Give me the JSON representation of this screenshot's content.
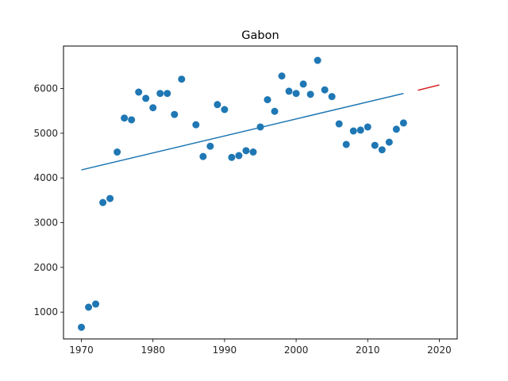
{
  "chart_data": {
    "type": "scatter",
    "title": "Gabon",
    "xlabel": "",
    "ylabel": "",
    "xlim": [
      1967.5,
      2022.5
    ],
    "ylim": [
      400,
      6950
    ],
    "grid": false,
    "x_ticks": [
      1970,
      1980,
      1990,
      2000,
      2010,
      2020
    ],
    "y_ticks": [
      1000,
      2000,
      3000,
      4000,
      5000,
      6000
    ],
    "colors": {
      "points": "#1f77b4",
      "fit": "#1f77b4",
      "forecast": "#d62728"
    },
    "series": [
      {
        "type": "scatter",
        "x": [
          1970,
          1971,
          1972,
          1973,
          1974,
          1975,
          1976,
          1977,
          1978,
          1979,
          1980,
          1981,
          1982,
          1983,
          1984,
          1986,
          1987,
          1988,
          1989,
          1990,
          1991,
          1992,
          1993,
          1994,
          1995,
          1996,
          1997,
          1998,
          1999,
          2000,
          2001,
          2002,
          2003,
          2004,
          2005,
          2006,
          2007,
          2008,
          2009,
          2010,
          2011,
          2012,
          2013,
          2014,
          2015
        ],
        "y": [
          660,
          1110,
          1180,
          3450,
          3540,
          4580,
          5340,
          5300,
          5920,
          5780,
          5570,
          5890,
          5890,
          5420,
          6210,
          5190,
          4480,
          4710,
          5640,
          5530,
          4460,
          4500,
          4610,
          4580,
          5140,
          5750,
          5490,
          6280,
          5940,
          5890,
          6100,
          5870,
          6630,
          5970,
          5820,
          5210,
          4750,
          5050,
          5070,
          5140,
          4730,
          4630,
          4800,
          5090,
          5230
        ]
      },
      {
        "type": "line",
        "x": [
          1970,
          2015
        ],
        "y": [
          4180,
          5890
        ]
      },
      {
        "type": "line",
        "x": [
          2017,
          2020
        ],
        "y": [
          5960,
          6080
        ]
      }
    ]
  }
}
